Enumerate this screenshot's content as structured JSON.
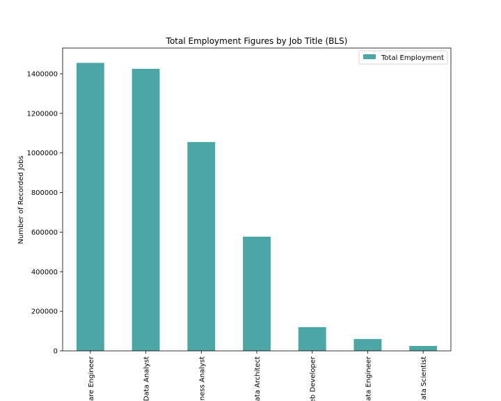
{
  "chart_data": {
    "type": "bar",
    "title": "Total Employment Figures by Job Title (BLS)",
    "xlabel": "",
    "ylabel": "Number of Recorded Jobs",
    "categories": [
      "Software Engineer",
      "Data Analyst",
      "Business Analyst",
      "Data Architect",
      "Web Developer",
      "Data Engineer",
      "Data Scientist"
    ],
    "x_tick_labels_visible": [
      "are Engineer",
      "Data Analyst",
      "ness Analyst",
      "ata Architect",
      "eb Developer",
      "ata Engineer",
      "ata Scientist"
    ],
    "series": [
      {
        "name": "Total Employment",
        "color": "#4da6a6",
        "values": [
          1455000,
          1425000,
          1055000,
          577000,
          120000,
          60000,
          25000
        ]
      }
    ],
    "ylim": [
      0,
      1530000
    ],
    "yticks": [
      0,
      200000,
      400000,
      600000,
      800000,
      1000000,
      1200000,
      1400000
    ],
    "ytick_labels": [
      "0",
      "200000",
      "400000",
      "600000",
      "800000",
      "1000000",
      "1200000",
      "1400000"
    ],
    "grid": false,
    "legend": "top-right"
  }
}
